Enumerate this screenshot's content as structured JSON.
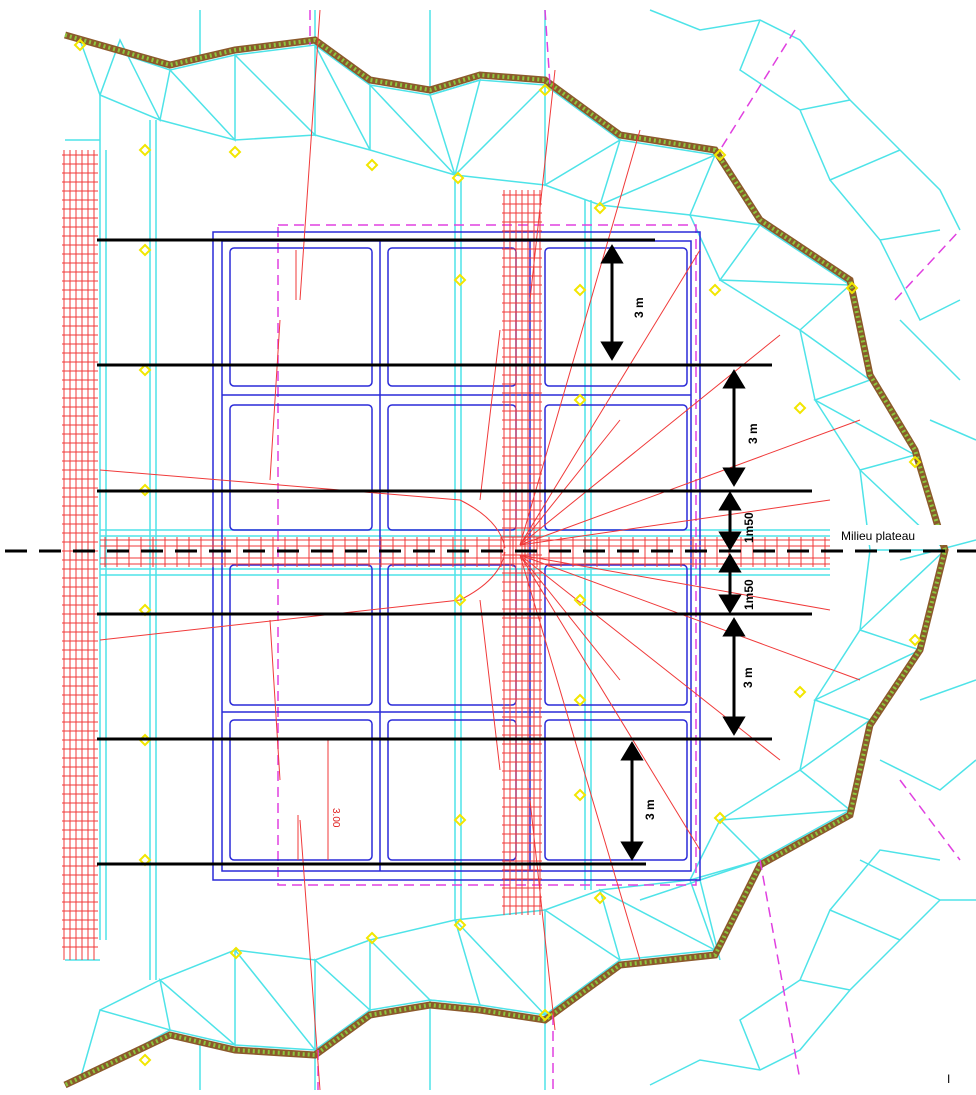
{
  "labels": {
    "midline": "Milieu plateau",
    "dim_3m": "3 m",
    "dim_1m50": "1m50",
    "small_red": "3.00",
    "corner_mark": "I"
  },
  "colors": {
    "cyan": "#4ee3e8",
    "red": "#f03a3a",
    "blue": "#2a2ad8",
    "magenta": "#e040e0",
    "yellow": "#f2e600",
    "green": "#8dc63f",
    "black": "#000000"
  }
}
